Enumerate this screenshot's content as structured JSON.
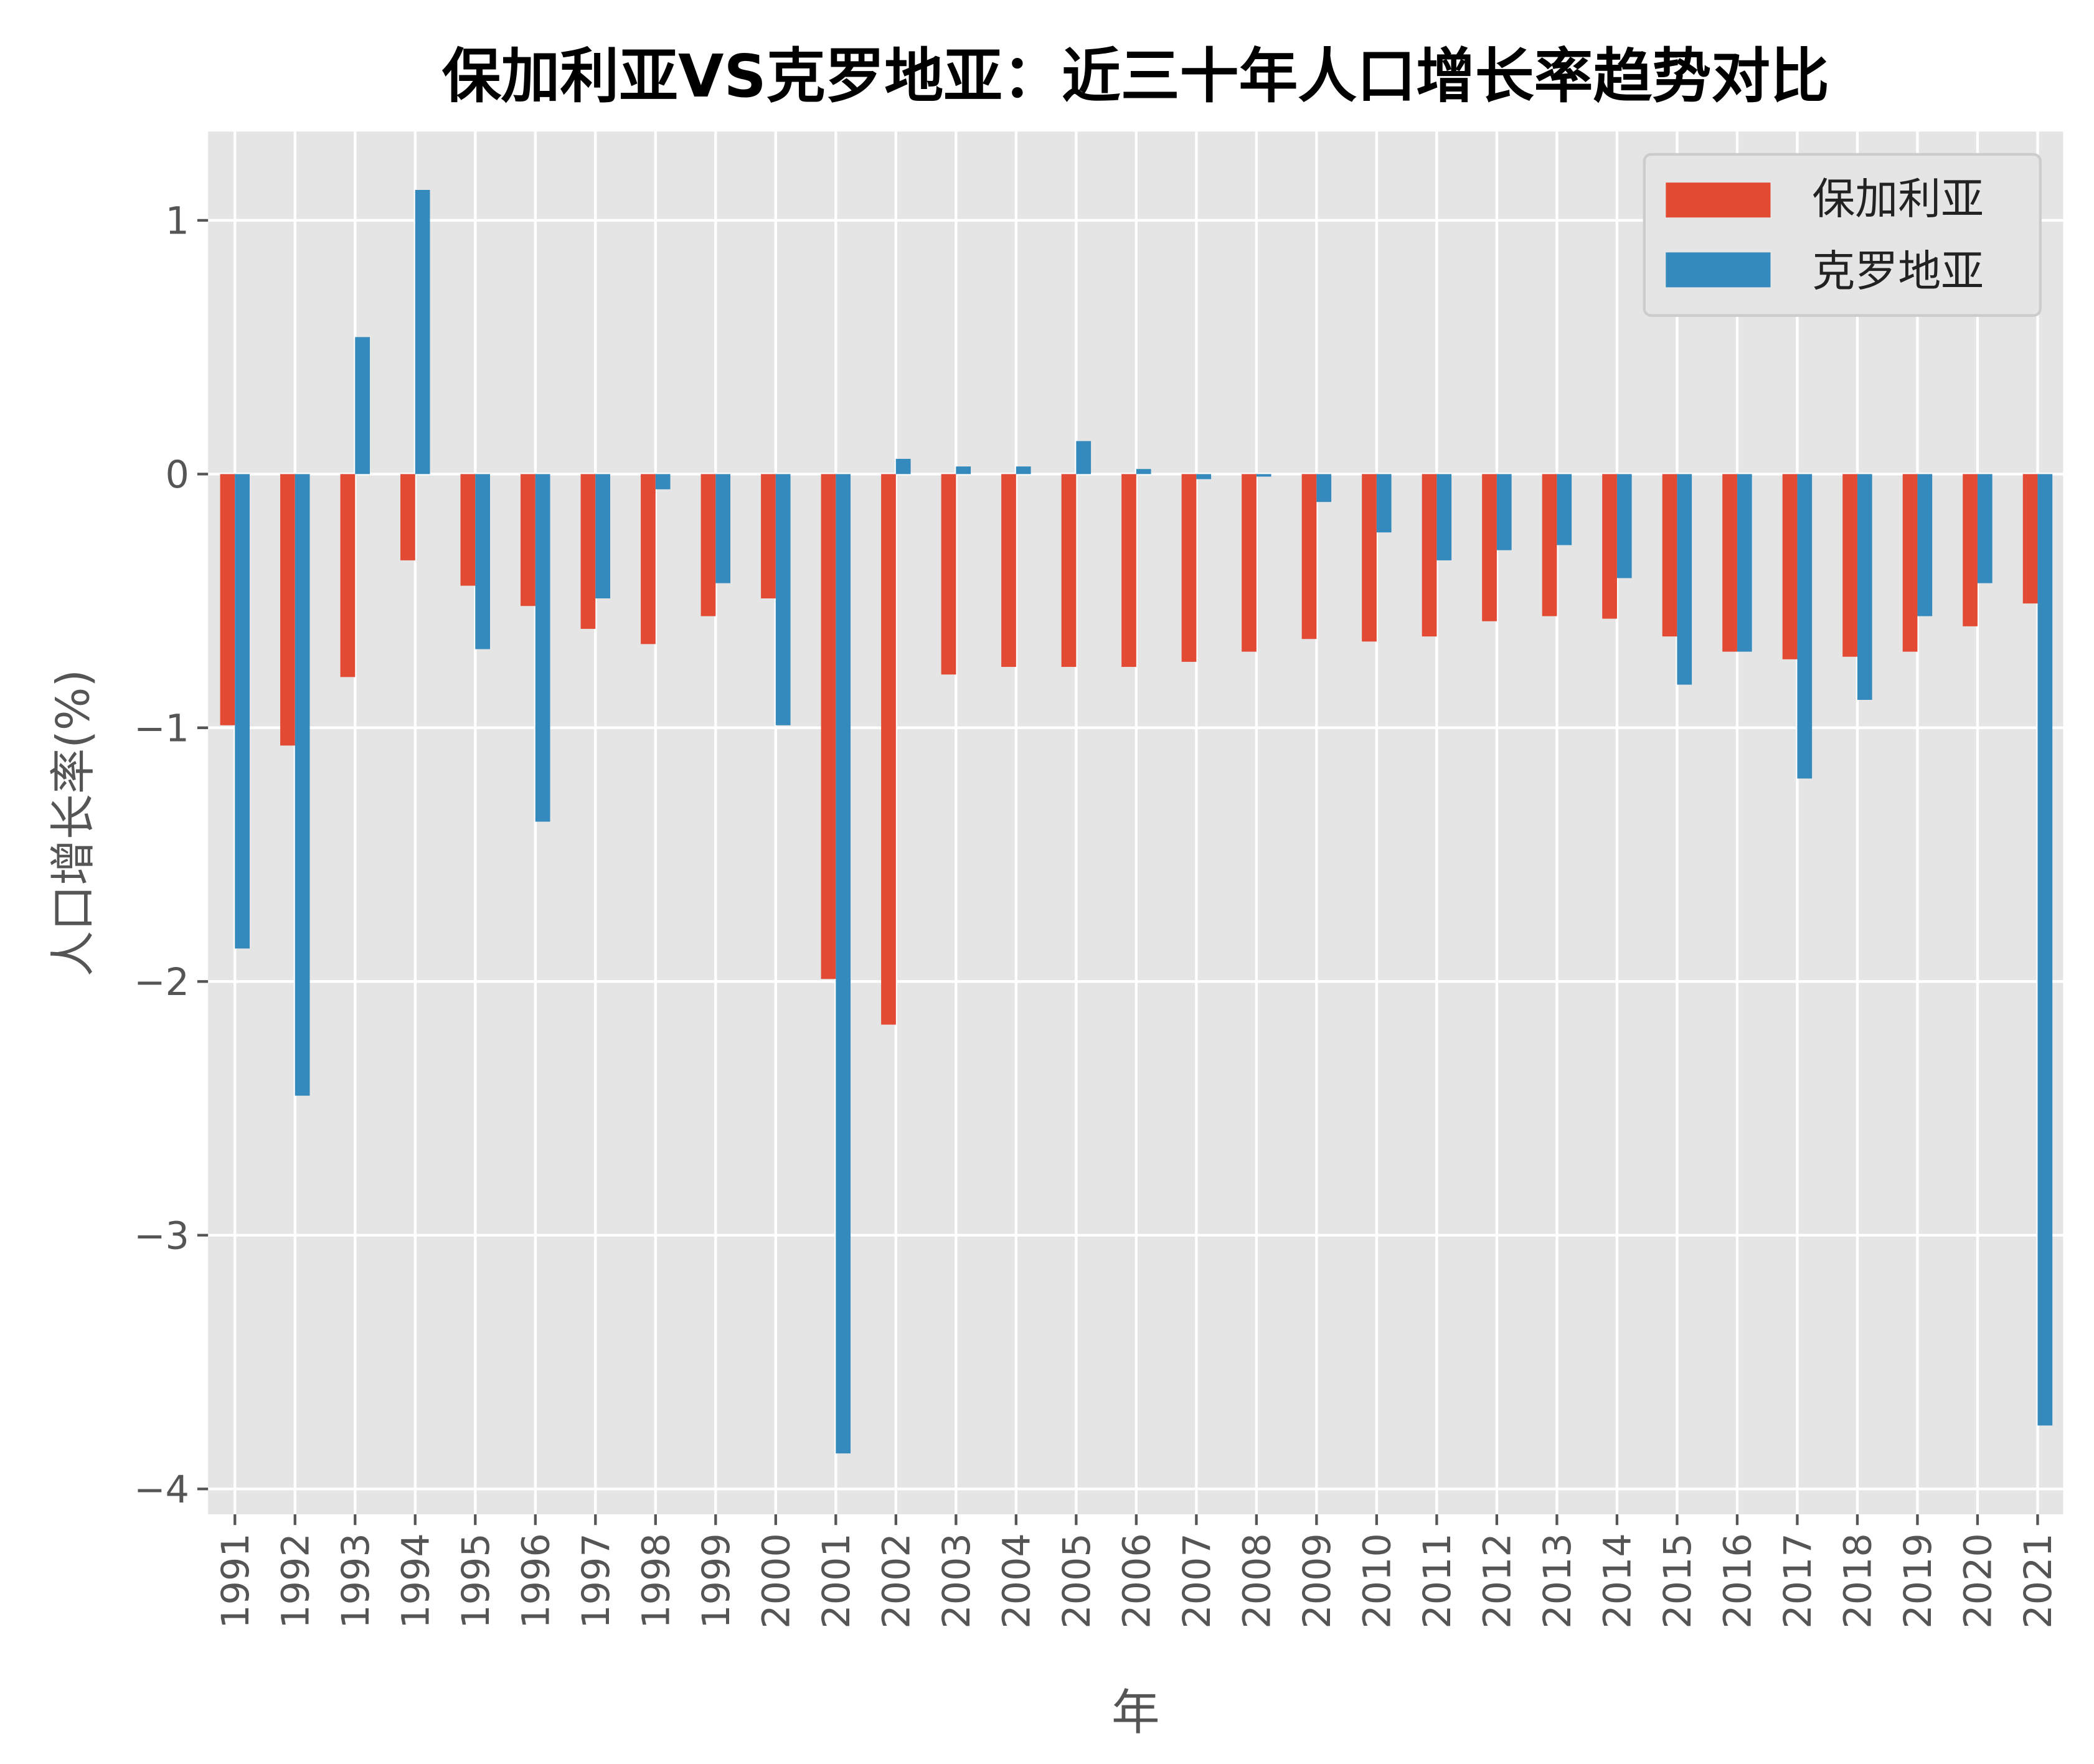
{
  "chart_data": {
    "type": "bar",
    "title": "保加利亚VS克罗地亚：近三十年人口增长率趋势对比",
    "xlabel": "年",
    "ylabel": "人口增长率(%)",
    "ylim": [
      -4.1,
      1.35
    ],
    "yticks": [
      1,
      0,
      -1,
      -2,
      -3,
      -4
    ],
    "ytick_labels": [
      "1",
      "0",
      "−1",
      "−2",
      "−3",
      "−4"
    ],
    "grid": true,
    "legend_position": "top-right",
    "categories": [
      "1991",
      "1992",
      "1993",
      "1994",
      "1995",
      "1996",
      "1997",
      "1998",
      "1999",
      "2000",
      "2001",
      "2002",
      "2003",
      "2004",
      "2005",
      "2006",
      "2007",
      "2008",
      "2009",
      "2010",
      "2011",
      "2012",
      "2013",
      "2014",
      "2015",
      "2016",
      "2017",
      "2018",
      "2019",
      "2020",
      "2021"
    ],
    "series": [
      {
        "name": "保加利亚",
        "color": "#E24A33",
        "values": [
          -0.99,
          -1.07,
          -0.8,
          -0.34,
          -0.44,
          -0.52,
          -0.61,
          -0.67,
          -0.56,
          -0.49,
          -1.99,
          -2.17,
          -0.79,
          -0.76,
          -0.76,
          -0.76,
          -0.74,
          -0.7,
          -0.65,
          -0.66,
          -0.64,
          -0.58,
          -0.56,
          -0.57,
          -0.64,
          -0.7,
          -0.73,
          -0.72,
          -0.7,
          -0.6,
          -0.51
        ]
      },
      {
        "name": "克罗地亚",
        "color": "#348ABD",
        "values": [
          -1.87,
          -2.45,
          0.54,
          1.12,
          -0.69,
          -1.37,
          -0.49,
          -0.06,
          -0.43,
          -0.99,
          -3.86,
          0.06,
          0.03,
          0.03,
          0.13,
          0.02,
          -0.02,
          -0.01,
          -0.11,
          -0.23,
          -0.34,
          -0.3,
          -0.28,
          -0.41,
          -0.83,
          -0.7,
          -1.2,
          -0.89,
          -0.56,
          -0.43,
          -3.75
        ]
      }
    ],
    "colors": {
      "plot_background": "#E5E5E5",
      "grid": "#FFFFFF",
      "text": "#555555"
    }
  }
}
